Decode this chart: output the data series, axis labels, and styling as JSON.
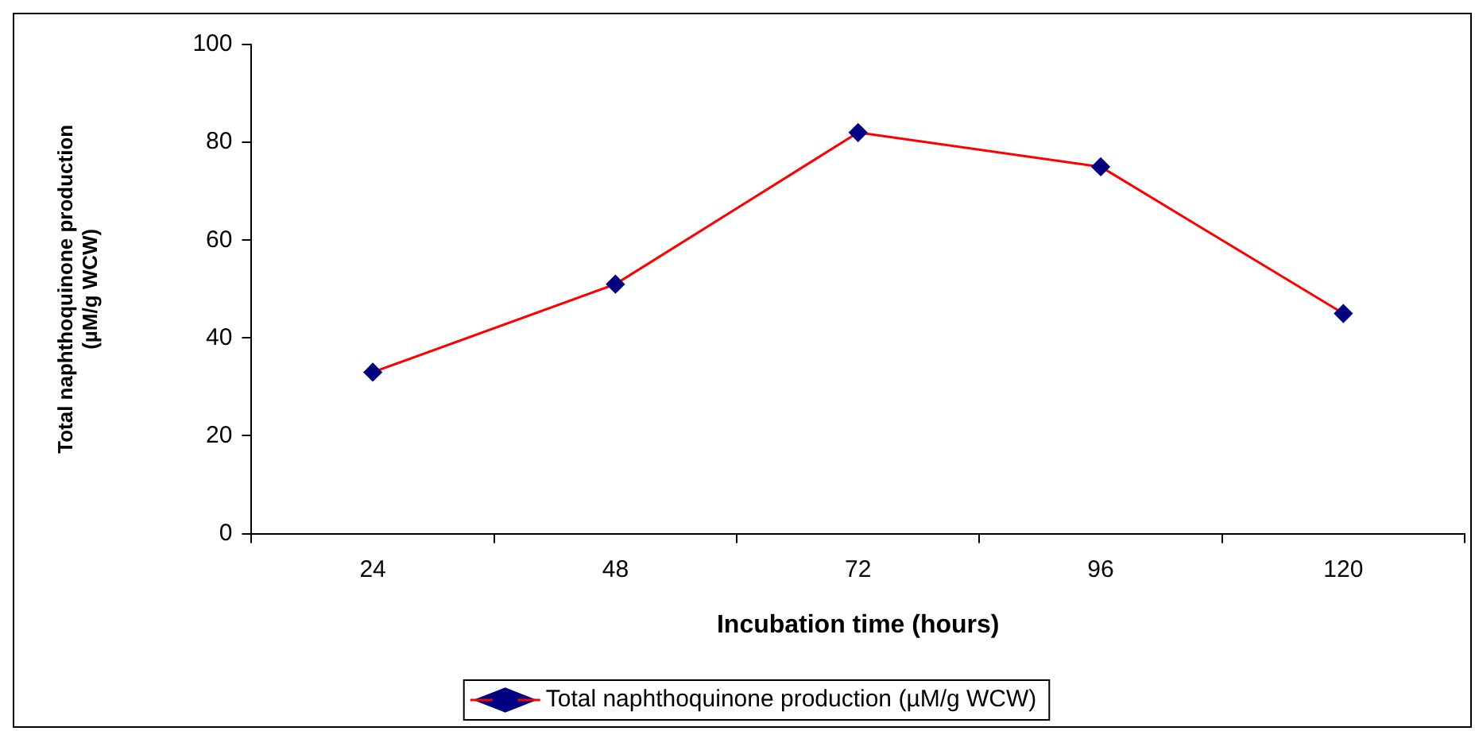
{
  "chart_data": {
    "type": "line",
    "xlabel": "Incubation time (hours)",
    "ylabel": "Total naphthoquinone production\n(µM/g WCW)",
    "categories": [
      "24",
      "48",
      "72",
      "96",
      "120"
    ],
    "series": [
      {
        "name": "Total naphthoquinone production (µM/g WCW)",
        "color": "#ff0000",
        "values": [
          33,
          51,
          82,
          75,
          45
        ]
      }
    ],
    "ylim": [
      0,
      100
    ],
    "yticks": [
      0,
      20,
      40,
      60,
      80,
      100
    ],
    "grid": false,
    "legend": "bottom",
    "marker": "diamond",
    "line_style": "solid"
  }
}
